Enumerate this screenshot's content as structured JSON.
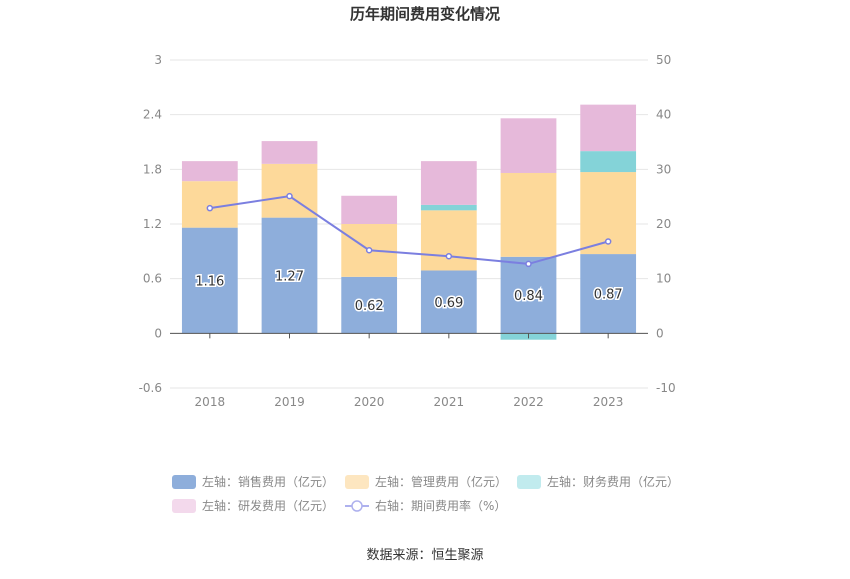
{
  "chart_data": {
    "type": "bar",
    "title": "历年期间费用变化情况",
    "categories": [
      "2018",
      "2019",
      "2020",
      "2021",
      "2022",
      "2023"
    ],
    "left_axis": {
      "ylim": [
        -0.6,
        3
      ],
      "ticks": [
        "-0.6",
        "0",
        "0.6",
        "1.2",
        "1.8",
        "2.4",
        "3"
      ]
    },
    "right_axis": {
      "ylim": [
        -10,
        50
      ],
      "ticks": [
        "-10",
        "0",
        "10",
        "20",
        "30",
        "40",
        "50"
      ]
    },
    "series": [
      {
        "name": "左轴：销售费用（亿元）",
        "kind": "bar",
        "axis": "left",
        "color": "#8eaedb",
        "values": [
          1.16,
          1.27,
          0.62,
          0.69,
          0.84,
          0.87
        ],
        "labels": [
          "1.16",
          "1.27",
          "0.62",
          "0.69",
          "0.84",
          "0.87"
        ]
      },
      {
        "name": "左轴：管理费用（亿元）",
        "kind": "bar",
        "axis": "left",
        "color": "#fdd99a",
        "values": [
          0.51,
          0.59,
          0.58,
          0.66,
          0.92,
          0.9
        ]
      },
      {
        "name": "左轴：财务费用（亿元）",
        "kind": "bar",
        "axis": "left",
        "color": "#84d3d8",
        "values": [
          0.0,
          0.0,
          0.0,
          0.06,
          -0.07,
          0.23
        ]
      },
      {
        "name": "左轴：研发费用（亿元）",
        "kind": "bar",
        "axis": "left",
        "color": "#e6b9da",
        "values": [
          0.22,
          0.25,
          0.31,
          0.48,
          0.6,
          0.51
        ]
      },
      {
        "name": "右轴：期间费用率（%）",
        "kind": "line",
        "axis": "right",
        "color": "#7b7fe0",
        "values": [
          22.9,
          25.1,
          15.2,
          14.1,
          12.7,
          16.8
        ]
      }
    ],
    "legend_position": "bottom",
    "grid": true
  },
  "legend": [
    {
      "label": "左轴：销售费用（亿元）",
      "color": "#8eaedb",
      "type": "box"
    },
    {
      "label": "左轴：管理费用（亿元）",
      "color": "#fde6c0",
      "type": "box"
    },
    {
      "label": "左轴：财务费用（亿元）",
      "color": "#c1ebee",
      "type": "box"
    },
    {
      "label": "左轴：研发费用（亿元）",
      "color": "#f3d9ec",
      "type": "box"
    },
    {
      "label": "右轴：期间费用率（%）",
      "color": "#aeb1ee",
      "type": "line"
    }
  ],
  "source": "数据来源：恒生聚源"
}
